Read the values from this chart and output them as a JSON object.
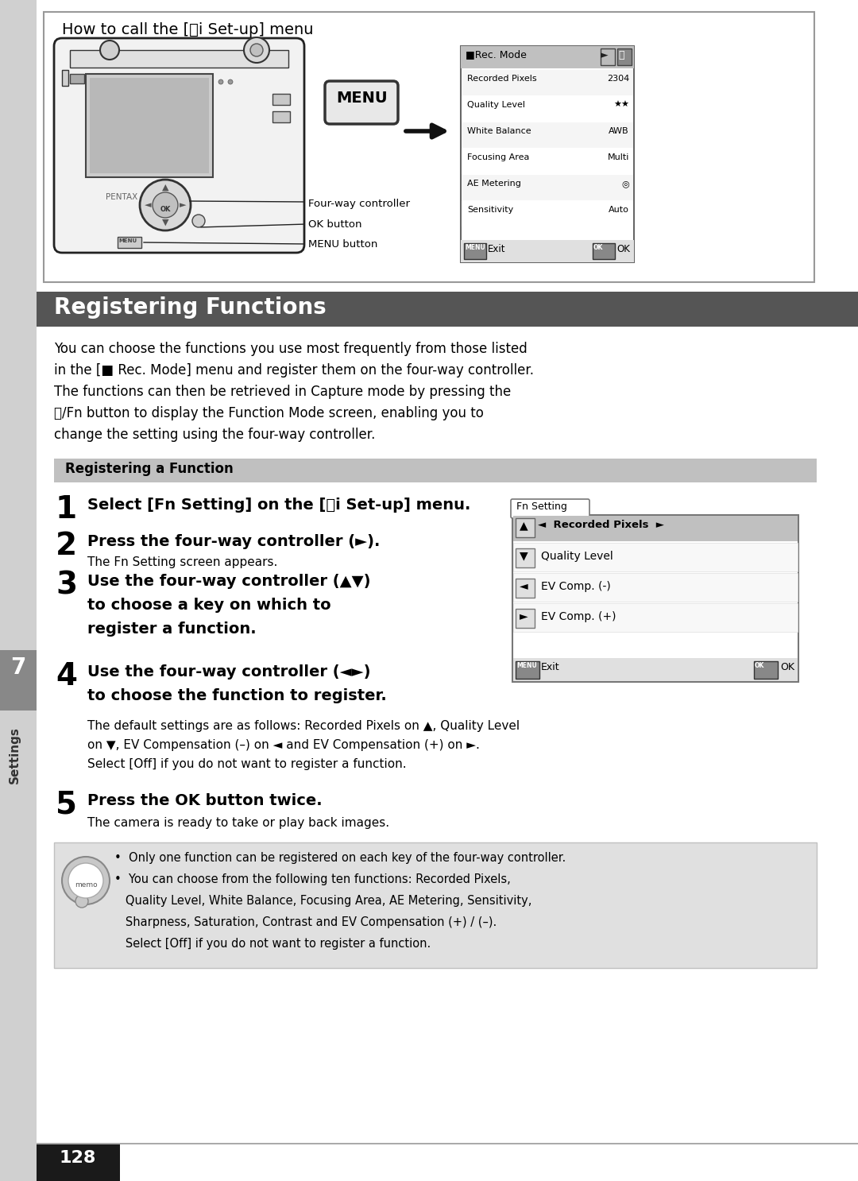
{
  "page_bg": "#ffffff",
  "page_number": "128",
  "page_number_bg": "#1a1a1a",
  "page_number_color": "#ffffff",
  "section_header": {
    "text": "Registering Functions",
    "bg": "#555555",
    "color": "#ffffff",
    "fontsize": 20
  },
  "sub_header": {
    "text": "Registering a Function",
    "bg": "#c0c0c0",
    "color": "#000000",
    "fontsize": 12
  },
  "intro_lines": [
    "You can choose the functions you use most frequently from those listed",
    "in the [■ Rec. Mode] menu and register them on the four-way controller.",
    "The functions can then be retrieved in Capture mode by pressing the",
    "␦/Fn button to display the Function Mode screen, enabling you to",
    "change the setting using the four-way controller."
  ],
  "step1_bold": "Select [Fn Setting] on the [␥i Set-up] menu.",
  "step2_bold": "Press the four-way controller (►).",
  "step2_normal": "The Fn Setting screen appears.",
  "step3_bold_lines": [
    "Use the four-way controller (▲▼)",
    "to choose a key on which to",
    "register a function."
  ],
  "step4_bold_lines": [
    "Use the four-way controller (◄►)",
    "to choose the function to register."
  ],
  "step4_normal_lines": [
    "The default settings are as follows: Recorded Pixels on ▲, Quality Level",
    "on ▼, EV Compensation (–) on ◄ and EV Compensation (+) on ►.",
    "Select [Off] if you do not want to register a function."
  ],
  "step5_bold": "Press the OK button twice.",
  "step5_normal": "The camera is ready to take or play back images.",
  "memo_lines": [
    "•  Only one function can be registered on each key of the four-way controller.",
    "•  You can choose from the following ten functions: Recorded Pixels,",
    "   Quality Level, White Balance, Focusing Area, AE Metering, Sensitivity,",
    "   Sharpness, Saturation, Contrast and EV Compensation (+) / (–).",
    "   Select [Off] if you do not want to register a function."
  ],
  "memo_bg": "#e0e0e0",
  "top_box_title": "How to call the [␥i Set-up] menu",
  "rec_menu_items": [
    [
      "Recorded Pixels",
      "2304"
    ],
    [
      "Quality Level",
      "★★"
    ],
    [
      "White Balance",
      "AWB"
    ],
    [
      "Focusing Area",
      "Multi"
    ],
    [
      "AE Metering",
      "◎"
    ],
    [
      "Sensitivity",
      "Auto"
    ]
  ],
  "fn_menu_items": [
    [
      "▼",
      "Quality Level"
    ],
    [
      "◄",
      "EV Comp. (-)"
    ],
    [
      "►",
      "EV Comp. (+)"
    ]
  ],
  "sidebar_number": "7",
  "sidebar_label": "Settings"
}
